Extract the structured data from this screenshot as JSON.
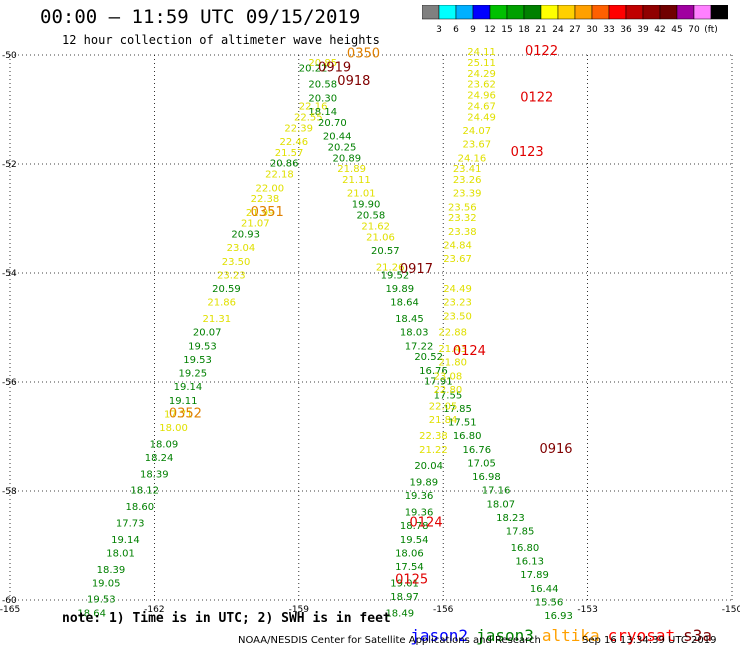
{
  "header": {
    "title": "00:00 – 11:59 UTC 09/15/2019",
    "subtitle": "12 hour collection of altimeter wave heights"
  },
  "colorbar": {
    "colors": [
      "#808080",
      "#00ffff",
      "#00b0ff",
      "#0000ff",
      "#00c000",
      "#00a000",
      "#008000",
      "#ffff00",
      "#ffd000",
      "#ffa000",
      "#ff6000",
      "#ff0000",
      "#c00000",
      "#900000",
      "#700000",
      "#a000a0",
      "#ff80ff",
      "#000000"
    ],
    "labels": [
      "3",
      "6",
      "9",
      "12",
      "15",
      "18",
      "21",
      "24",
      "27",
      "30",
      "33",
      "36",
      "39",
      "42",
      "45",
      "70",
      "(ft)"
    ]
  },
  "footer": {
    "note": "note: 1) Time is in UTC; 2) SWH is in feet",
    "satellites": [
      {
        "name": "jason2",
        "color": "#0000ff"
      },
      {
        "name": "jason3",
        "color": "#008000"
      },
      {
        "name": "altika",
        "color": "#ffa000"
      },
      {
        "name": "cryosat",
        "color": "#ff0000"
      },
      {
        "name": "s3a",
        "color": "#800000"
      }
    ],
    "credit": "NOAA/NESDIS Center for Satellite Applications and Research",
    "timestamp": "Sep 16 13:34:39 UTC 2019"
  },
  "chart_data": {
    "type": "scatter",
    "xlim": [
      -165,
      -150
    ],
    "ylim": [
      -60,
      -50
    ],
    "xticks": [
      "-165",
      "-162",
      "-159",
      "-156",
      "-153",
      "-150"
    ],
    "yticks": [
      "-50",
      "-52",
      "-54",
      "-56",
      "-58",
      "-60"
    ],
    "colors": {
      "green": "#008000",
      "yellow": "#e0e000",
      "orange": "#e08000",
      "red": "#e00000",
      "darkred": "#800000"
    },
    "points": [
      {
        "x": -158.8,
        "y": -50.2,
        "v": "20.85",
        "c": "yellow"
      },
      {
        "x": -159.0,
        "y": -50.3,
        "v": "20.22",
        "c": "green"
      },
      {
        "x": -158.8,
        "y": -50.6,
        "v": "20.58",
        "c": "green"
      },
      {
        "x": -158.8,
        "y": -50.85,
        "v": "20.30",
        "c": "green"
      },
      {
        "x": -159.0,
        "y": -51.0,
        "v": "22.16",
        "c": "yellow"
      },
      {
        "x": -158.8,
        "y": -51.1,
        "v": "18.14",
        "c": "green"
      },
      {
        "x": -159.1,
        "y": -51.2,
        "v": "22.55",
        "c": "yellow"
      },
      {
        "x": -158.6,
        "y": -51.3,
        "v": "20.70",
        "c": "green"
      },
      {
        "x": -159.3,
        "y": -51.4,
        "v": "22.39",
        "c": "yellow"
      },
      {
        "x": -158.5,
        "y": -51.55,
        "v": "20.44",
        "c": "green"
      },
      {
        "x": -159.4,
        "y": -51.65,
        "v": "22.46",
        "c": "yellow"
      },
      {
        "x": -158.4,
        "y": -51.75,
        "v": "20.25",
        "c": "green"
      },
      {
        "x": -159.5,
        "y": -51.85,
        "v": "21.57",
        "c": "yellow"
      },
      {
        "x": -158.3,
        "y": -51.95,
        "v": "20.89",
        "c": "green"
      },
      {
        "x": -159.6,
        "y": -52.05,
        "v": "20.86",
        "c": "green"
      },
      {
        "x": -158.2,
        "y": -52.15,
        "v": "21.89",
        "c": "yellow"
      },
      {
        "x": -159.7,
        "y": -52.25,
        "v": "22.18",
        "c": "yellow"
      },
      {
        "x": -158.1,
        "y": -52.35,
        "v": "21.11",
        "c": "yellow"
      },
      {
        "x": -159.9,
        "y": -52.5,
        "v": "22.00",
        "c": "yellow"
      },
      {
        "x": -158.0,
        "y": -52.6,
        "v": "21.01",
        "c": "yellow"
      },
      {
        "x": -160.0,
        "y": -52.7,
        "v": "22.38",
        "c": "yellow"
      },
      {
        "x": -157.9,
        "y": -52.8,
        "v": "19.90",
        "c": "green"
      },
      {
        "x": -160.1,
        "y": -52.95,
        "v": "21.99",
        "c": "yellow"
      },
      {
        "x": -157.8,
        "y": -53.0,
        "v": "20.58",
        "c": "green"
      },
      {
        "x": -160.2,
        "y": -53.15,
        "v": "21.07",
        "c": "yellow"
      },
      {
        "x": -157.7,
        "y": -53.2,
        "v": "21.62",
        "c": "yellow"
      },
      {
        "x": -160.4,
        "y": -53.35,
        "v": "20.93",
        "c": "green"
      },
      {
        "x": -157.6,
        "y": -53.4,
        "v": "21.06",
        "c": "yellow"
      },
      {
        "x": -160.5,
        "y": -53.6,
        "v": "23.04",
        "c": "yellow"
      },
      {
        "x": -157.5,
        "y": -53.65,
        "v": "20.57",
        "c": "green"
      },
      {
        "x": -160.6,
        "y": -53.85,
        "v": "23.50",
        "c": "yellow"
      },
      {
        "x": -157.4,
        "y": -53.95,
        "v": "21.26",
        "c": "yellow"
      },
      {
        "x": -160.7,
        "y": -54.1,
        "v": "23.23",
        "c": "yellow"
      },
      {
        "x": -157.3,
        "y": -54.1,
        "v": "19.52",
        "c": "green"
      },
      {
        "x": -160.8,
        "y": -54.35,
        "v": "20.59",
        "c": "green"
      },
      {
        "x": -157.2,
        "y": -54.35,
        "v": "19.89",
        "c": "green"
      },
      {
        "x": -160.9,
        "y": -54.6,
        "v": "21.86",
        "c": "yellow"
      },
      {
        "x": -157.1,
        "y": -54.6,
        "v": "18.64",
        "c": "green"
      },
      {
        "x": -161.0,
        "y": -54.9,
        "v": "21.31",
        "c": "yellow"
      },
      {
        "x": -157.0,
        "y": -54.9,
        "v": "18.45",
        "c": "green"
      },
      {
        "x": -161.2,
        "y": -55.15,
        "v": "20.07",
        "c": "green"
      },
      {
        "x": -156.9,
        "y": -55.15,
        "v": "18.03",
        "c": "green"
      },
      {
        "x": -161.3,
        "y": -55.4,
        "v": "19.53",
        "c": "green"
      },
      {
        "x": -156.8,
        "y": -55.4,
        "v": "17.22",
        "c": "green"
      },
      {
        "x": -161.4,
        "y": -55.65,
        "v": "19.53",
        "c": "green"
      },
      {
        "x": -156.6,
        "y": -55.6,
        "v": "20.52",
        "c": "green"
      },
      {
        "x": -161.5,
        "y": -55.9,
        "v": "19.25",
        "c": "green"
      },
      {
        "x": -156.5,
        "y": -55.85,
        "v": "16.76",
        "c": "green"
      },
      {
        "x": -161.6,
        "y": -56.15,
        "v": "19.14",
        "c": "green"
      },
      {
        "x": -156.4,
        "y": -56.05,
        "v": "17.91",
        "c": "green"
      },
      {
        "x": -161.7,
        "y": -56.4,
        "v": "19.11",
        "c": "green"
      },
      {
        "x": -156.2,
        "y": -56.3,
        "v": "17.55",
        "c": "green"
      },
      {
        "x": -161.8,
        "y": -56.65,
        "v": "17.71",
        "c": "yellow"
      },
      {
        "x": -156.0,
        "y": -56.55,
        "v": "17.85",
        "c": "green"
      },
      {
        "x": -161.9,
        "y": -56.9,
        "v": "18.00",
        "c": "yellow"
      },
      {
        "x": -155.9,
        "y": -56.8,
        "v": "17.51",
        "c": "green"
      },
      {
        "x": -162.1,
        "y": -57.2,
        "v": "18.09",
        "c": "green"
      },
      {
        "x": -155.8,
        "y": -57.05,
        "v": "16.80",
        "c": "green"
      },
      {
        "x": -162.2,
        "y": -57.45,
        "v": "18.24",
        "c": "green"
      },
      {
        "x": -155.6,
        "y": -57.3,
        "v": "16.76",
        "c": "green"
      },
      {
        "x": -162.3,
        "y": -57.75,
        "v": "18.39",
        "c": "green"
      },
      {
        "x": -155.5,
        "y": -57.55,
        "v": "17.05",
        "c": "green"
      },
      {
        "x": -162.5,
        "y": -58.05,
        "v": "18.12",
        "c": "green"
      },
      {
        "x": -155.4,
        "y": -57.8,
        "v": "16.98",
        "c": "green"
      },
      {
        "x": -162.6,
        "y": -58.35,
        "v": "18.60",
        "c": "green"
      },
      {
        "x": -155.2,
        "y": -58.05,
        "v": "17.16",
        "c": "green"
      },
      {
        "x": -162.8,
        "y": -58.65,
        "v": "17.73",
        "c": "green"
      },
      {
        "x": -155.1,
        "y": -58.3,
        "v": "18.07",
        "c": "green"
      },
      {
        "x": -162.9,
        "y": -58.95,
        "v": "19.14",
        "c": "green"
      },
      {
        "x": -154.9,
        "y": -58.55,
        "v": "18.23",
        "c": "green"
      },
      {
        "x": -163.0,
        "y": -59.2,
        "v": "18.01",
        "c": "green"
      },
      {
        "x": -154.7,
        "y": -58.8,
        "v": "17.85",
        "c": "green"
      },
      {
        "x": -163.2,
        "y": -59.5,
        "v": "18.39",
        "c": "green"
      },
      {
        "x": -154.6,
        "y": -59.1,
        "v": "16.80",
        "c": "green"
      },
      {
        "x": -163.3,
        "y": -59.75,
        "v": "19.05",
        "c": "green"
      },
      {
        "x": -154.5,
        "y": -59.35,
        "v": "16.13",
        "c": "green"
      },
      {
        "x": -163.4,
        "y": -60.05,
        "v": "19.53",
        "c": "green"
      },
      {
        "x": -154.4,
        "y": -59.6,
        "v": "17.89",
        "c": "green"
      },
      {
        "x": -163.6,
        "y": -60.3,
        "v": "18.64",
        "c": "green"
      },
      {
        "x": -154.2,
        "y": -59.85,
        "v": "16.44",
        "c": "green"
      },
      {
        "x": -154.1,
        "y": -60.1,
        "v": "15.56",
        "c": "green"
      },
      {
        "x": -153.9,
        "y": -60.35,
        "v": "16.93",
        "c": "green"
      },
      {
        "x": -155.5,
        "y": -50.0,
        "v": "24.11",
        "c": "yellow"
      },
      {
        "x": -155.5,
        "y": -50.2,
        "v": "25.11",
        "c": "yellow"
      },
      {
        "x": -155.5,
        "y": -50.4,
        "v": "24.29",
        "c": "yellow"
      },
      {
        "x": -155.5,
        "y": -50.6,
        "v": "23.62",
        "c": "yellow"
      },
      {
        "x": -155.5,
        "y": -50.8,
        "v": "24.96",
        "c": "yellow"
      },
      {
        "x": -155.5,
        "y": -51.0,
        "v": "24.67",
        "c": "yellow"
      },
      {
        "x": -155.5,
        "y": -51.2,
        "v": "24.49",
        "c": "yellow"
      },
      {
        "x": -155.6,
        "y": -51.45,
        "v": "24.07",
        "c": "yellow"
      },
      {
        "x": -155.6,
        "y": -51.7,
        "v": "23.67",
        "c": "yellow"
      },
      {
        "x": -155.7,
        "y": -51.95,
        "v": "24.16",
        "c": "yellow"
      },
      {
        "x": -155.8,
        "y": -52.15,
        "v": "23.41",
        "c": "yellow"
      },
      {
        "x": -155.8,
        "y": -52.35,
        "v": "23.26",
        "c": "yellow"
      },
      {
        "x": -155.8,
        "y": -52.6,
        "v": "23.39",
        "c": "yellow"
      },
      {
        "x": -155.9,
        "y": -52.85,
        "v": "23.56",
        "c": "yellow"
      },
      {
        "x": -155.9,
        "y": -53.05,
        "v": "23.32",
        "c": "yellow"
      },
      {
        "x": -155.9,
        "y": -53.3,
        "v": "23.38",
        "c": "yellow"
      },
      {
        "x": -156.0,
        "y": -53.55,
        "v": "24.84",
        "c": "yellow"
      },
      {
        "x": -156.0,
        "y": -53.8,
        "v": "23.67",
        "c": "yellow"
      },
      {
        "x": -156.0,
        "y": -54.35,
        "v": "24.49",
        "c": "yellow"
      },
      {
        "x": -156.0,
        "y": -54.6,
        "v": "23.23",
        "c": "yellow"
      },
      {
        "x": -156.0,
        "y": -54.85,
        "v": "23.50",
        "c": "yellow"
      },
      {
        "x": -156.1,
        "y": -55.15,
        "v": "22.88",
        "c": "yellow"
      },
      {
        "x": -156.1,
        "y": -55.45,
        "v": "21.43",
        "c": "yellow"
      },
      {
        "x": -156.1,
        "y": -55.7,
        "v": "21.80",
        "c": "yellow"
      },
      {
        "x": -156.2,
        "y": -55.95,
        "v": "23.08",
        "c": "yellow"
      },
      {
        "x": -156.2,
        "y": -56.2,
        "v": "22.80",
        "c": "yellow"
      },
      {
        "x": -156.3,
        "y": -56.5,
        "v": "22.05",
        "c": "yellow"
      },
      {
        "x": -156.3,
        "y": -56.75,
        "v": "21.84",
        "c": "yellow"
      },
      {
        "x": -156.5,
        "y": -57.05,
        "v": "22.38",
        "c": "yellow"
      },
      {
        "x": -156.5,
        "y": -57.3,
        "v": "21.22",
        "c": "yellow"
      },
      {
        "x": -156.6,
        "y": -57.6,
        "v": "20.04",
        "c": "green"
      },
      {
        "x": -156.7,
        "y": -57.9,
        "v": "19.89",
        "c": "green"
      },
      {
        "x": -156.8,
        "y": -58.15,
        "v": "19.36",
        "c": "green"
      },
      {
        "x": -156.8,
        "y": -58.45,
        "v": "19.36",
        "c": "green"
      },
      {
        "x": -156.9,
        "y": -58.7,
        "v": "18.78",
        "c": "green"
      },
      {
        "x": -156.9,
        "y": -58.95,
        "v": "19.54",
        "c": "green"
      },
      {
        "x": -157.0,
        "y": -59.2,
        "v": "18.06",
        "c": "green"
      },
      {
        "x": -157.0,
        "y": -59.45,
        "v": "17.54",
        "c": "green"
      },
      {
        "x": -157.1,
        "y": -59.75,
        "v": "19.01",
        "c": "green"
      },
      {
        "x": -157.1,
        "y": -60.0,
        "v": "18.97",
        "c": "green"
      },
      {
        "x": -157.2,
        "y": -60.3,
        "v": "18.49",
        "c": "green"
      },
      {
        "x": -157.2,
        "y": -60.55,
        "v": "18.56",
        "c": "green"
      }
    ],
    "time_labels": [
      {
        "x": -158.0,
        "y": -50.05,
        "t": "0350",
        "c": "orange"
      },
      {
        "x": -158.6,
        "y": -50.3,
        "t": "0919",
        "c": "darkred"
      },
      {
        "x": -158.2,
        "y": -50.55,
        "t": "0918",
        "c": "darkred"
      },
      {
        "x": -160.0,
        "y": -52.95,
        "t": "0351",
        "c": "orange"
      },
      {
        "x": -161.7,
        "y": -56.65,
        "t": "0352",
        "c": "orange"
      },
      {
        "x": -156.9,
        "y": -54.0,
        "t": "0917",
        "c": "darkred"
      },
      {
        "x": -154.3,
        "y": -50.0,
        "t": "0122",
        "c": "red"
      },
      {
        "x": -154.4,
        "y": -50.85,
        "t": "0122",
        "c": "red"
      },
      {
        "x": -154.6,
        "y": -51.85,
        "t": "0123",
        "c": "red"
      },
      {
        "x": -155.8,
        "y": -55.5,
        "t": "0124",
        "c": "red"
      },
      {
        "x": -154.0,
        "y": -57.3,
        "t": "0916",
        "c": "darkred"
      },
      {
        "x": -156.7,
        "y": -58.65,
        "t": "0124",
        "c": "red"
      },
      {
        "x": -157.0,
        "y": -59.7,
        "t": "0125",
        "c": "red"
      }
    ]
  }
}
